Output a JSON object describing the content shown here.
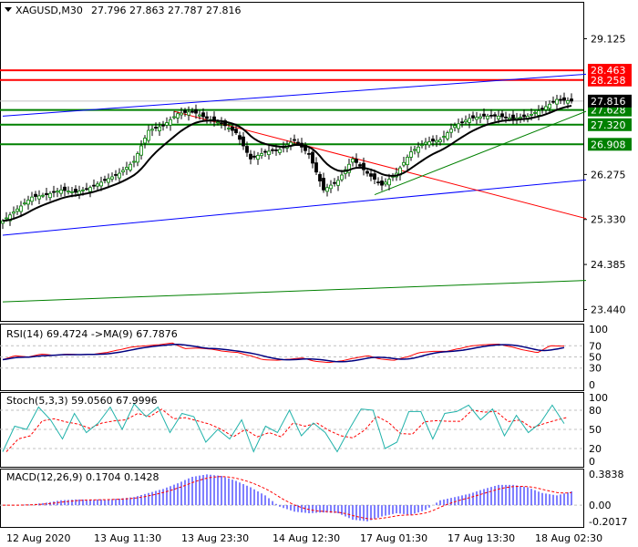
{
  "chart_data": {
    "type": "candlestick",
    "symbol": "XAGUSD,M30",
    "ohlc_label": "27.796 27.863 27.787 27.816",
    "step_bars": 4,
    "closes": [
      25.3,
      25.55,
      25.8,
      25.85,
      25.95,
      25.9,
      26.0,
      26.15,
      26.3,
      26.55,
      27.2,
      27.3,
      27.55,
      27.6,
      27.45,
      27.35,
      27.15,
      26.6,
      26.75,
      26.8,
      27.0,
      26.7,
      25.95,
      26.15,
      26.6,
      26.3,
      26.05,
      26.3,
      26.75,
      26.95,
      27.0,
      27.3,
      27.45,
      27.5,
      27.5,
      27.45,
      27.5,
      27.65,
      27.85,
      27.816
    ],
    "y_ticks": [
      "29.125",
      "26.275",
      "25.330",
      "24.385",
      "23.440"
    ],
    "y_tick_values": [
      29.125,
      26.275,
      25.33,
      24.385,
      23.44
    ],
    "ylim": [
      23.2,
      29.9
    ],
    "current_price": {
      "label": "27.816",
      "value": 27.816,
      "color": "#000000"
    },
    "levels": [
      {
        "label": "28.463",
        "value": 28.463,
        "color": "#ff0000"
      },
      {
        "label": "28.258",
        "value": 28.258,
        "color": "#ff0000"
      },
      {
        "label": "27.628",
        "value": 27.628,
        "color": "#008000"
      },
      {
        "label": "27.320",
        "value": 27.32,
        "color": "#008000"
      },
      {
        "label": "26.908",
        "value": 26.908,
        "color": "#008000"
      }
    ],
    "trendlines": [
      {
        "from_bar": 0,
        "from": 27.5,
        "to_bar": 160,
        "to": 28.38,
        "color": "#0000ff"
      },
      {
        "from_bar": 0,
        "from": 25.0,
        "to_bar": 160,
        "to": 26.16,
        "color": "#0000ff"
      },
      {
        "from_bar": 47,
        "from": 27.6,
        "to_bar": 160,
        "to": 25.35,
        "color": "#ff0000"
      },
      {
        "from_bar": 102,
        "from": 25.85,
        "to_bar": 160,
        "to": 27.6,
        "color": "#008000"
      },
      {
        "from_bar": 0,
        "from": 23.6,
        "to_bar": 160,
        "to": 24.05,
        "color": "#008000"
      }
    ],
    "x_ticks": [
      "12 Aug 2020",
      "13 Aug 11:30",
      "13 Aug 23:30",
      "14 Aug 12:30",
      "17 Aug 01:30",
      "17 Aug 13:30",
      "18 Aug 02:30"
    ],
    "x_tick_bars": [
      1,
      25,
      49,
      74,
      98,
      122,
      146
    ],
    "rsi": {
      "label": "RSI(14) 69.4724  ->MA(9) 67.7876",
      "ticks": [
        "100",
        "70",
        "50",
        "30",
        "0"
      ],
      "tick_values": [
        100,
        70,
        50,
        30,
        0
      ],
      "values": [
        45,
        52,
        50,
        55,
        53,
        55,
        54,
        55,
        58,
        63,
        68,
        70,
        72,
        75,
        65,
        66,
        64,
        60,
        58,
        52,
        45,
        44,
        46,
        48,
        42,
        40,
        43,
        48,
        52,
        46,
        44,
        50,
        58,
        60,
        60,
        65,
        70,
        72,
        73,
        68,
        62,
        58,
        70,
        69.47
      ]
    },
    "stoch": {
      "label": "Stoch(5,3,3) 59.0560 67.9996",
      "ticks": [
        "100",
        "80",
        "50",
        "20",
        "0"
      ],
      "tick_values": [
        100,
        80,
        50,
        20,
        0
      ],
      "values": [
        15,
        55,
        50,
        85,
        65,
        35,
        75,
        45,
        60,
        85,
        50,
        90,
        70,
        85,
        45,
        75,
        70,
        30,
        50,
        35,
        65,
        15,
        55,
        45,
        80,
        40,
        60,
        45,
        15,
        50,
        82,
        80,
        20,
        30,
        78,
        78,
        35,
        75,
        78,
        88,
        65,
        82,
        40,
        72,
        45,
        60,
        88,
        59.06
      ]
    },
    "macd": {
      "label": "MACD(12,26,9) 0.1704 0.1428",
      "ticks": [
        "0.3838",
        "0.00",
        "-0.2017"
      ],
      "tick_values": [
        0.3838,
        0,
        -0.2017
      ],
      "values": [
        0,
        0,
        0.01,
        0.03,
        0.06,
        0.07,
        0.07,
        0.07,
        0.08,
        0.1,
        0.15,
        0.2,
        0.27,
        0.35,
        0.38,
        0.36,
        0.3,
        0.22,
        0.12,
        -0.02,
        -0.08,
        -0.1,
        -0.09,
        -0.1,
        -0.18,
        -0.2,
        -0.14,
        -0.1,
        -0.12,
        -0.06,
        0.06,
        0.1,
        0.14,
        0.2,
        0.25,
        0.25,
        0.22,
        0.15,
        0.12,
        0.17
      ]
    }
  }
}
